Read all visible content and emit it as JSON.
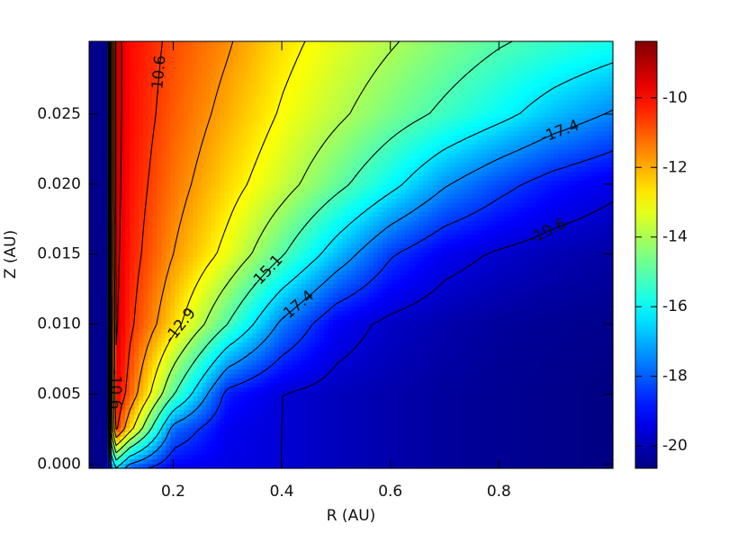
{
  "chart_data": {
    "type": "contour",
    "xlabel": "R (AU)",
    "ylabel": "Z (AU)",
    "xlim": [
      0.045,
      1.01
    ],
    "ylim": [
      -0.0003,
      0.0302
    ],
    "xticks": [
      0.2,
      0.4,
      0.6,
      0.8
    ],
    "yticks": [
      {
        "value": 0,
        "label": "0.000"
      },
      {
        "value": 0.005,
        "label": "0.005"
      },
      {
        "value": 0.01,
        "label": "0.010"
      },
      {
        "value": 0.015,
        "label": "0.015"
      },
      {
        "value": 0.02,
        "label": "0.020"
      },
      {
        "value": 0.025,
        "label": "0.025"
      }
    ],
    "colormap": "jet",
    "colorbar": {
      "clim": [
        -20.64,
        -8.38
      ],
      "ticks": [
        -10,
        -12,
        -14,
        -16,
        -18,
        -20
      ]
    },
    "contour_levels": [
      -9.5,
      -10.6,
      -11.7,
      -12.9,
      -14.0,
      -15.1,
      -16.3,
      -17.4,
      -18.5,
      -19.6
    ],
    "x": [
      0.045,
      0.08,
      0.09,
      0.12,
      0.2,
      0.3,
      0.4,
      0.5,
      0.6,
      0.7,
      0.8,
      0.9,
      1.01
    ],
    "y": [
      -0.0003,
      0.0025,
      0.005,
      0.01,
      0.015,
      0.02,
      0.025,
      0.0302
    ],
    "z": [
      [
        -20.5,
        -20.5,
        -16.0,
        -18.0,
        -19.2,
        -19.4,
        -19.6,
        -19.9,
        -20.1,
        -20.3,
        -20.4,
        -20.5,
        -20.6
      ],
      [
        -20.5,
        -20.5,
        -10.0,
        -12.5,
        -17.8,
        -19.3,
        -19.6,
        -19.9,
        -20.1,
        -20.3,
        -20.4,
        -20.5,
        -20.6
      ],
      [
        -20.5,
        -20.5,
        -9.5,
        -11.0,
        -15.0,
        -18.8,
        -19.6,
        -19.9,
        -20.1,
        -20.3,
        -20.4,
        -20.5,
        -20.6
      ],
      [
        -20.5,
        -20.5,
        -9.2,
        -10.4,
        -12.5,
        -15.1,
        -17.6,
        -19.2,
        -19.8,
        -20.1,
        -20.3,
        -20.4,
        -20.5
      ],
      [
        -20.5,
        -20.5,
        -9.1,
        -10.2,
        -11.7,
        -13.2,
        -15.0,
        -16.8,
        -18.4,
        -19.3,
        -19.7,
        -20.0,
        -20.2
      ],
      [
        -20.5,
        -20.5,
        -9.0,
        -10.1,
        -11.3,
        -12.5,
        -13.6,
        -14.8,
        -16.0,
        -17.3,
        -18.2,
        -18.9,
        -19.4
      ],
      [
        -20.5,
        -20.5,
        -9.0,
        -10.0,
        -11.0,
        -12.0,
        -13.0,
        -13.8,
        -14.6,
        -15.3,
        -16.0,
        -16.8,
        -17.5
      ],
      [
        -20.5,
        -20.5,
        -9.0,
        -10.0,
        -10.8,
        -11.6,
        -12.6,
        -13.3,
        -13.9,
        -14.5,
        -15.0,
        -15.4,
        -15.8
      ]
    ]
  }
}
